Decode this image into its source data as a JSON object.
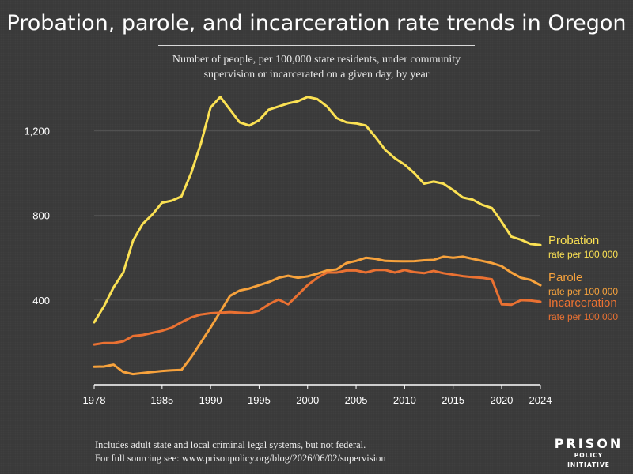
{
  "header": {
    "title": "Probation, parole, and incarceration rate trends in Oregon",
    "subtitle_line1": "Number of people, per 100,000 state residents, under community",
    "subtitle_line2": "supervision or incarcerated on a given day, by year"
  },
  "footer": {
    "note_line1": "Includes adult state and local criminal legal systems, but not federal.",
    "note_line2": "For full sourcing see: www.prisonpolicy.org/blog/2026/06/02/supervision"
  },
  "logo": {
    "main": "PRISON",
    "sub": "POLICY INITIATIVE"
  },
  "colors": {
    "background": "#3a3a3a",
    "probation": "#fbe153",
    "parole": "#f7a23c",
    "incarceration": "#ea7132",
    "text": "#ffffff"
  },
  "chart_data": {
    "type": "line",
    "x": [
      1978,
      1979,
      1980,
      1981,
      1982,
      1983,
      1984,
      1985,
      1986,
      1987,
      1988,
      1989,
      1990,
      1991,
      1992,
      1993,
      1994,
      1995,
      1996,
      1997,
      1998,
      1999,
      2000,
      2001,
      2002,
      2003,
      2004,
      2005,
      2006,
      2007,
      2008,
      2009,
      2010,
      2011,
      2012,
      2013,
      2014,
      2015,
      2016,
      2017,
      2018,
      2019,
      2020,
      2021,
      2022,
      2023,
      2024
    ],
    "xticks": [
      "1978",
      "1985",
      "1990",
      "1995",
      "2000",
      "2005",
      "2010",
      "2015",
      "2020",
      "2024"
    ],
    "xtick_values": [
      1978,
      1985,
      1990,
      1995,
      2000,
      2005,
      2010,
      2015,
      2020,
      2024
    ],
    "yticks": [
      "400",
      "800",
      "1,200"
    ],
    "ytick_values": [
      400,
      800,
      1200
    ],
    "xlim": [
      1978,
      2024
    ],
    "ylim": [
      0,
      1400
    ],
    "series": [
      {
        "name": "Probation",
        "sublabel": "rate per 100,000",
        "color": "#fbe153",
        "values": [
          295,
          370,
          460,
          530,
          680,
          760,
          805,
          860,
          870,
          890,
          1000,
          1140,
          1310,
          1360,
          1300,
          1240,
          1225,
          1250,
          1300,
          1315,
          1330,
          1340,
          1360,
          1350,
          1315,
          1260,
          1240,
          1235,
          1225,
          1170,
          1110,
          1070,
          1040,
          1000,
          950,
          960,
          950,
          920,
          885,
          875,
          850,
          835,
          770,
          700,
          685,
          665,
          660
        ]
      },
      {
        "name": "Parole",
        "sublabel": "rate per 100,000",
        "color": "#f7a23c",
        "values": [
          85,
          86,
          95,
          60,
          50,
          55,
          60,
          65,
          68,
          70,
          130,
          200,
          270,
          345,
          420,
          445,
          455,
          470,
          485,
          505,
          515,
          505,
          512,
          525,
          540,
          545,
          575,
          585,
          600,
          595,
          585,
          584,
          583,
          584,
          588,
          590,
          605,
          600,
          605,
          595,
          585,
          575,
          560,
          530,
          505,
          495,
          470
        ]
      },
      {
        "name": "Incarceration",
        "sublabel": "rate per 100,000",
        "color": "#ea7132",
        "values": [
          190,
          197,
          197,
          205,
          230,
          235,
          245,
          255,
          270,
          295,
          318,
          332,
          338,
          340,
          343,
          340,
          338,
          350,
          380,
          403,
          380,
          425,
          470,
          505,
          530,
          530,
          540,
          540,
          530,
          542,
          542,
          530,
          542,
          532,
          527,
          538,
          527,
          520,
          513,
          508,
          505,
          498,
          380,
          378,
          400,
          398,
          392
        ]
      }
    ]
  }
}
